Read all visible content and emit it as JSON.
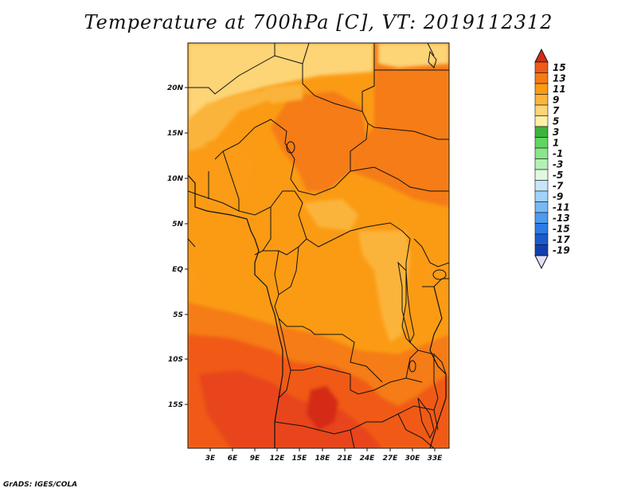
{
  "title": "Temperature at 700hPa [C], VT: 2019112312",
  "credit": "GrADS: IGES/COLA",
  "lat_ticks": [
    "20N",
    "15N",
    "10N",
    "5N",
    "EQ",
    "5S",
    "10S",
    "15S"
  ],
  "lon_ticks": [
    "3E",
    "6E",
    "9E",
    "12E",
    "15E",
    "18E",
    "21E",
    "24E",
    "27E",
    "30E",
    "33E"
  ],
  "colorbar": {
    "labels": [
      "15",
      "13",
      "11",
      "9",
      "7",
      "5",
      "3",
      "1",
      "-1",
      "-3",
      "-5",
      "-7",
      "-9",
      "-11",
      "-13",
      "-15",
      "-17",
      "-19"
    ],
    "colors": [
      "#e8451b",
      "#f05a17",
      "#f57c14",
      "#fb9b14",
      "#fbb43a",
      "#fdd476",
      "#fff0a8",
      "#3cb43c",
      "#62d462",
      "#8ae68a",
      "#b4f0b4",
      "#e1f8e1",
      "#c8e6fa",
      "#a0d2fa",
      "#78b9f5",
      "#4b9bef",
      "#2d7be6",
      "#1a5ccf",
      "#123fb0",
      "#0a1e6e"
    ],
    "top_arrow_color": "#d42c14",
    "bottom_arrow_color": "#e1e1fa"
  },
  "map_fill_colors": {
    "dark_red": "#d42c14",
    "red": "#e8451b",
    "red_orange": "#f05a17",
    "orange": "#f57c14",
    "light_orange": "#fb9b14",
    "gold": "#fbb43a",
    "yellow": "#fdd476"
  }
}
